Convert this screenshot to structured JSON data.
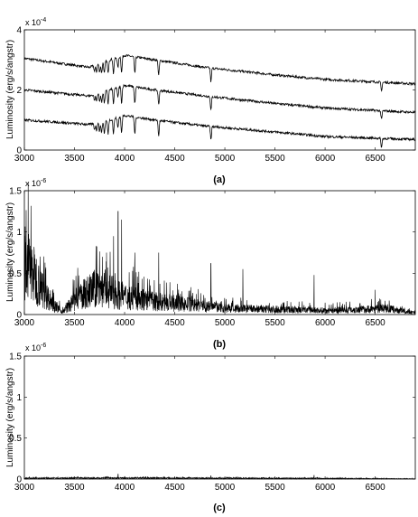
{
  "chart_data": [
    {
      "type": "line",
      "caption": "(a)",
      "ylabel": "Luminosity (erg/s/angstr)",
      "scale_base": "x 10",
      "scale_exp": "-4",
      "xlim": [
        3000,
        6900
      ],
      "ylim": [
        0,
        4
      ],
      "x_ticks": [
        3000,
        3500,
        4000,
        4500,
        5000,
        5500,
        6000,
        6500
      ],
      "y_ticks": [
        "0",
        "2",
        "4"
      ],
      "series": [
        {
          "continuum": [
            [
              3000,
              3.05
            ],
            [
              3650,
              2.75
            ],
            [
              3800,
              2.95
            ],
            [
              4000,
              3.15
            ],
            [
              4300,
              3.0
            ],
            [
              4800,
              2.75
            ],
            [
              5500,
              2.5
            ],
            [
              6000,
              2.35
            ],
            [
              6900,
              2.2
            ]
          ]
        },
        {
          "continuum": [
            [
              3000,
              2.0
            ],
            [
              3650,
              1.8
            ],
            [
              3800,
              1.95
            ],
            [
              4000,
              2.15
            ],
            [
              4300,
              2.0
            ],
            [
              4800,
              1.8
            ],
            [
              5500,
              1.55
            ],
            [
              6000,
              1.4
            ],
            [
              6900,
              1.25
            ]
          ]
        },
        {
          "continuum": [
            [
              3000,
              1.0
            ],
            [
              3650,
              0.85
            ],
            [
              3800,
              0.95
            ],
            [
              4000,
              1.15
            ],
            [
              4300,
              1.0
            ],
            [
              4800,
              0.8
            ],
            [
              5500,
              0.6
            ],
            [
              6000,
              0.45
            ],
            [
              6900,
              0.35
            ]
          ]
        }
      ],
      "absorption_lines": [
        {
          "x": 3700,
          "depth": 0.2
        },
        {
          "x": 3720,
          "depth": 0.25
        },
        {
          "x": 3750,
          "depth": 0.3
        },
        {
          "x": 3771,
          "depth": 0.35
        },
        {
          "x": 3798,
          "depth": 0.4
        },
        {
          "x": 3835,
          "depth": 0.45
        },
        {
          "x": 3889,
          "depth": 0.5
        },
        {
          "x": 3933,
          "depth": 0.35
        },
        {
          "x": 3970,
          "depth": 0.55
        },
        {
          "x": 4102,
          "depth": 0.55
        },
        {
          "x": 4340,
          "depth": 0.5
        },
        {
          "x": 4861,
          "depth": 0.45
        },
        {
          "x": 6563,
          "depth": 0.3
        }
      ]
    },
    {
      "type": "line",
      "caption": "(b)",
      "ylabel": "Luminosity (erg/s/angstr)",
      "scale_base": "x 10",
      "scale_exp": "-6",
      "xlim": [
        3000,
        6900
      ],
      "ylim": [
        0,
        1.5
      ],
      "x_ticks": [
        3000,
        3500,
        4000,
        4500,
        5000,
        5500,
        6000,
        6500
      ],
      "y_ticks": [
        "0",
        "0.5",
        "1",
        "1.5"
      ],
      "envelope": [
        [
          3000,
          1.05
        ],
        [
          3100,
          0.75
        ],
        [
          3200,
          0.42
        ],
        [
          3300,
          0.18
        ],
        [
          3380,
          0.05
        ],
        [
          3450,
          0.18
        ],
        [
          3550,
          0.35
        ],
        [
          3650,
          0.45
        ],
        [
          3750,
          0.55
        ],
        [
          3850,
          0.45
        ],
        [
          4000,
          0.35
        ],
        [
          4300,
          0.25
        ],
        [
          4600,
          0.2
        ],
        [
          5000,
          0.12
        ],
        [
          5500,
          0.1
        ],
        [
          6000,
          0.08
        ],
        [
          6400,
          0.1
        ],
        [
          6600,
          0.12
        ],
        [
          6900,
          0.03
        ]
      ],
      "peaks": [
        {
          "x": 3780,
          "y": 0.7
        },
        {
          "x": 3820,
          "y": 0.75
        },
        {
          "x": 3890,
          "y": 0.95
        },
        {
          "x": 3935,
          "y": 1.25
        },
        {
          "x": 3970,
          "y": 1.15
        },
        {
          "x": 4102,
          "y": 0.75
        },
        {
          "x": 4340,
          "y": 0.75
        },
        {
          "x": 4861,
          "y": 0.62
        },
        {
          "x": 5180,
          "y": 0.55
        },
        {
          "x": 5890,
          "y": 0.48
        },
        {
          "x": 6500,
          "y": 0.3
        }
      ]
    },
    {
      "type": "line",
      "caption": "(c)",
      "ylabel": "Luminosity (erg/s/angstr)",
      "scale_base": "x 10",
      "scale_exp": "-6",
      "xlim": [
        3000,
        6900
      ],
      "ylim": [
        0,
        1.5
      ],
      "x_ticks": [
        3000,
        3500,
        4000,
        4500,
        5000,
        5500,
        6000,
        6500
      ],
      "y_ticks": [
        "0",
        "0.5",
        "1",
        "1.5"
      ],
      "envelope": [
        [
          3000,
          0.015
        ],
        [
          4000,
          0.02
        ],
        [
          5000,
          0.015
        ],
        [
          6000,
          0.012
        ],
        [
          6900,
          0.005
        ]
      ],
      "peaks": [
        {
          "x": 3935,
          "y": 0.06
        },
        {
          "x": 4861,
          "y": 0.04
        },
        {
          "x": 5890,
          "y": 0.05
        }
      ]
    }
  ]
}
